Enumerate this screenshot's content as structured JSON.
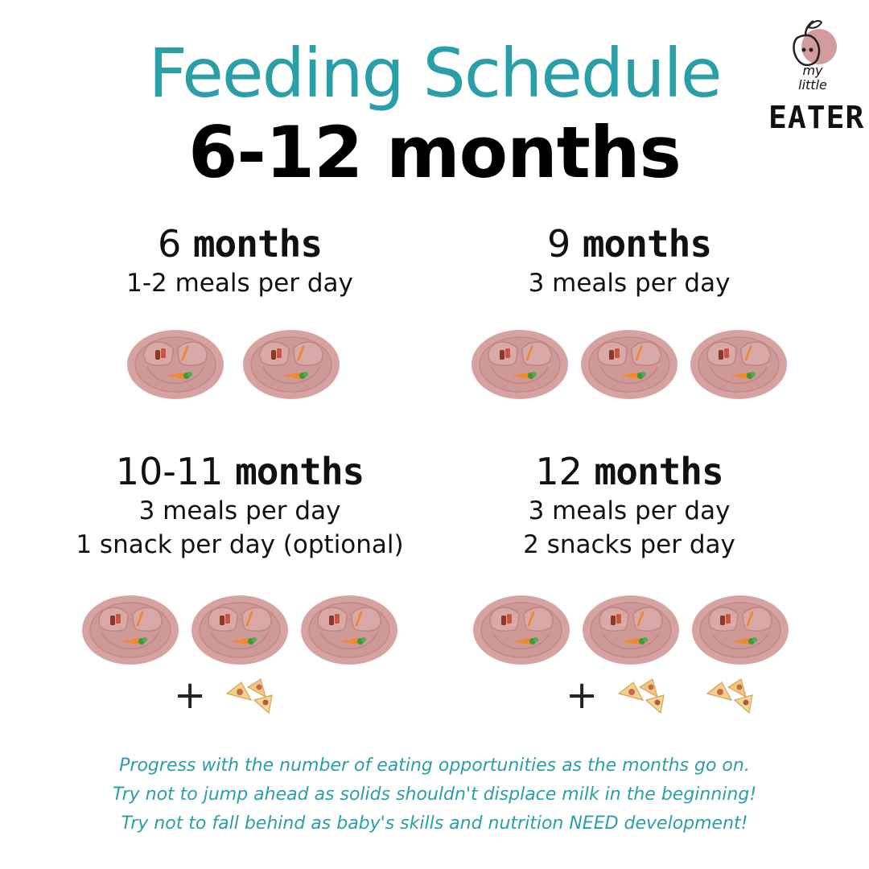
{
  "title": {
    "line1": "Feeding Schedule",
    "line2": "6-12 months"
  },
  "logo": {
    "my": "my",
    "little": "little",
    "eater": "EATER"
  },
  "sections": [
    {
      "number": "6",
      "unit": "months",
      "lines": [
        "1-2 meals per day"
      ],
      "plates": 2,
      "snacks": 0
    },
    {
      "number": "9",
      "unit": "months",
      "lines": [
        "3 meals per day"
      ],
      "plates": 3,
      "snacks": 0
    },
    {
      "number": "10-11",
      "unit": "months",
      "lines": [
        "3 meals per day",
        "1 snack per day (optional)"
      ],
      "plates": 3,
      "snacks": 1
    },
    {
      "number": "12",
      "unit": "months",
      "lines": [
        "3 meals per day",
        "2 snacks per day"
      ],
      "plates": 3,
      "snacks": 2
    }
  ],
  "plus_symbol": "+",
  "footer": [
    "Progress with the number of eating opportunities as the months go on.",
    "Try not to jump ahead as solids shouldn't displace milk in the beginning!",
    "Try not to fall behind as baby's skills and nutrition NEED development!"
  ],
  "icons": {
    "plate": "suction-plate-icon",
    "snack": "snack-icon",
    "logo": "apple-logo-icon"
  },
  "colors": {
    "teal": "#2a9fa8",
    "plate": "#d7a3a1",
    "black": "#000000"
  }
}
